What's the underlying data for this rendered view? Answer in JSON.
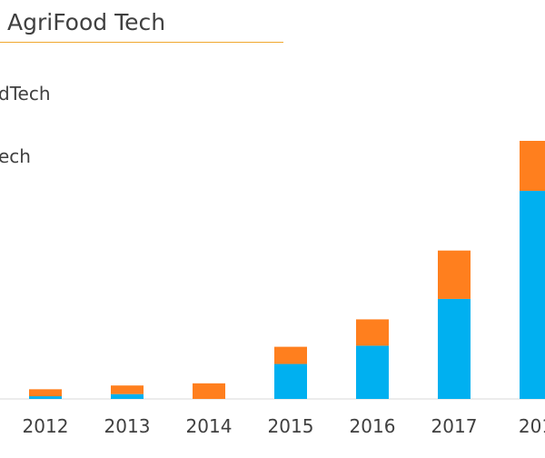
{
  "title": "AgriFood Tech",
  "legend_visible": [
    "dTech",
    "ech"
  ],
  "colors": {
    "blue": "#00B0F0",
    "orange": "#FF7F1E",
    "axis": "#d9d9d9",
    "title_rule": "#f0a830"
  },
  "chart_data": {
    "type": "bar",
    "stacked": true,
    "categories": [
      "2012",
      "2013",
      "2014",
      "2015",
      "2016",
      "2017",
      "201"
    ],
    "series": [
      {
        "color": "#00B0F0",
        "values": [
          0.5,
          0.9,
          0,
          6.5,
          9.9,
          18.6,
          38.7
        ]
      },
      {
        "color": "#FF7F1E",
        "values": [
          1.3,
          1.6,
          2.9,
          3.2,
          4.9,
          9.0,
          9.3
        ]
      }
    ],
    "ylim": [
      0,
      50
    ],
    "grid": false
  }
}
